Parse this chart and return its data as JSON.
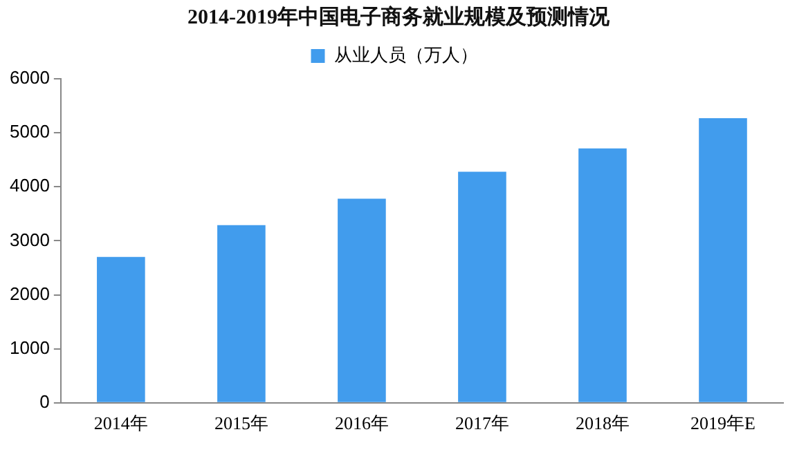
{
  "chart_data": {
    "type": "bar",
    "title": "2014-2019年中国电子商务就业规模及预测情况",
    "categories": [
      "2014年",
      "2015年",
      "2016年",
      "2017年",
      "2018年",
      "2019年E"
    ],
    "series": [
      {
        "name": "从业人员（万人）",
        "color": "#419ced",
        "values": [
          2700,
          3290,
          3780,
          4280,
          4710,
          5270
        ]
      }
    ],
    "ylim": [
      0,
      6000
    ],
    "yticks": [
      0,
      1000,
      2000,
      3000,
      4000,
      5000,
      6000
    ],
    "grid": false,
    "legend": "top"
  }
}
